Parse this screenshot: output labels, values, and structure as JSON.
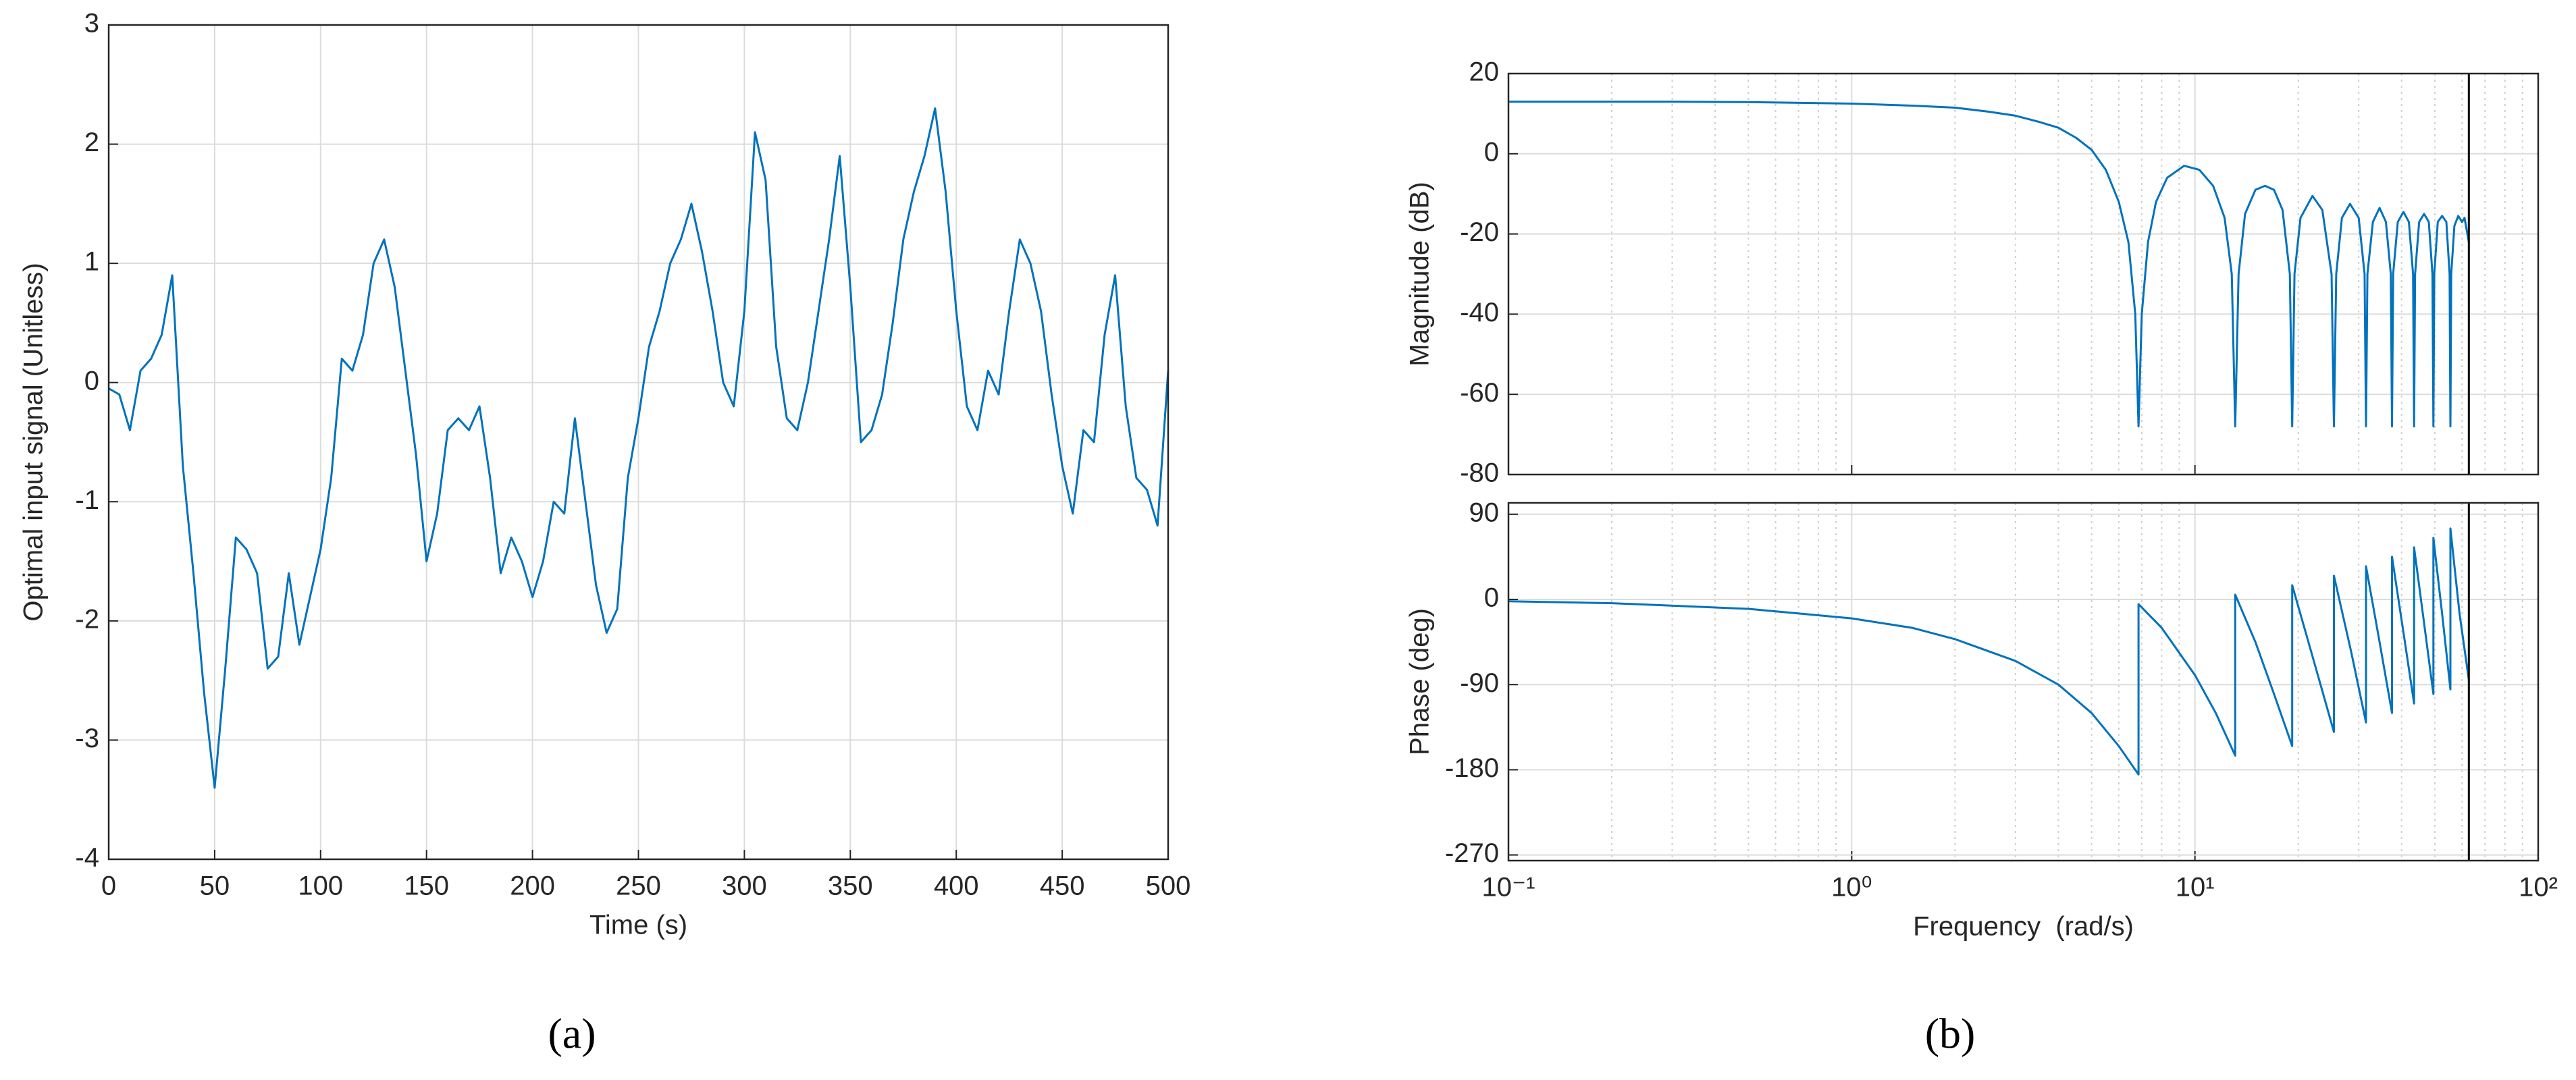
{
  "chart_data": [
    {
      "type": "line",
      "ylabel": "Optimal input signal (Unitless)",
      "xlabel": "Time (s)",
      "xlim": [
        0,
        500
      ],
      "xticks": [
        0,
        50,
        100,
        150,
        200,
        250,
        300,
        350,
        400,
        450,
        500
      ],
      "ylim": [
        -4,
        3
      ],
      "yticks": [
        -4,
        -3,
        -2,
        -1,
        0,
        1,
        2,
        3
      ],
      "grid": true,
      "show_xtick_labels": true,
      "series": [
        {
          "color": "#0072bd",
          "x": [
            0,
            5,
            10,
            15,
            20,
            25,
            30,
            35,
            40,
            45,
            50,
            55,
            60,
            65,
            70,
            75,
            80,
            85,
            90,
            95,
            100,
            105,
            110,
            115,
            120,
            125,
            130,
            135,
            140,
            145,
            150,
            155,
            160,
            165,
            170,
            175,
            180,
            185,
            190,
            195,
            200,
            205,
            210,
            215,
            220,
            225,
            230,
            235,
            240,
            245,
            250,
            255,
            260,
            265,
            270,
            275,
            280,
            285,
            290,
            295,
            300,
            305,
            310,
            315,
            320,
            325,
            330,
            335,
            340,
            345,
            350,
            355,
            360,
            365,
            370,
            375,
            380,
            385,
            390,
            395,
            400,
            405,
            410,
            415,
            420,
            425,
            430,
            435,
            440,
            445,
            450,
            455,
            460,
            465,
            470,
            475,
            480,
            485,
            490,
            495,
            500
          ],
          "values": [
            -0.05,
            -0.1,
            -0.4,
            0.1,
            0.2,
            0.4,
            0.9,
            -0.7,
            -1.6,
            -2.6,
            -3.4,
            -2.4,
            -1.3,
            -1.4,
            -1.6,
            -2.4,
            -2.3,
            -1.6,
            -2.2,
            -1.8,
            -1.4,
            -0.8,
            0.2,
            0.1,
            0.4,
            1.0,
            1.2,
            0.8,
            0.1,
            -0.6,
            -1.5,
            -1.1,
            -0.4,
            -0.3,
            -0.4,
            -0.2,
            -0.8,
            -1.6,
            -1.3,
            -1.5,
            -1.8,
            -1.5,
            -1.0,
            -1.1,
            -0.3,
            -1.0,
            -1.7,
            -2.1,
            -1.9,
            -0.8,
            -0.3,
            0.3,
            0.6,
            1.0,
            1.2,
            1.5,
            1.1,
            0.6,
            0.0,
            -0.2,
            0.6,
            2.1,
            1.7,
            0.3,
            -0.3,
            -0.4,
            0.0,
            0.6,
            1.2,
            1.9,
            0.8,
            -0.5,
            -0.4,
            -0.1,
            0.5,
            1.2,
            1.6,
            1.9,
            2.3,
            1.6,
            0.6,
            -0.2,
            -0.4,
            0.1,
            -0.1,
            0.6,
            1.2,
            1.0,
            0.6,
            -0.1,
            -0.7,
            -1.1,
            -0.4,
            -0.5,
            0.4,
            0.9,
            -0.2,
            -0.8,
            -0.9,
            -1.2,
            0.1
          ]
        }
      ]
    },
    {
      "type": "line",
      "ylabel": "Magnitude (dB)",
      "xscale": "log",
      "xlim": [
        0.1,
        100
      ],
      "xticks": [
        0.1,
        1,
        10,
        100
      ],
      "show_xtick_labels": false,
      "ylim": [
        -80,
        20
      ],
      "yticks": [
        -80,
        -60,
        -40,
        -20,
        0,
        20
      ],
      "grid": true,
      "vline": 62.8,
      "series": [
        {
          "color": "#0072bd",
          "x": [
            0.1,
            0.3,
            0.5,
            1,
            1.5,
            2,
            2.5,
            3,
            3.5,
            4,
            4.5,
            5,
            5.5,
            6,
            6.4,
            6.7,
            6.85,
            7,
            7.3,
            7.7,
            8.3,
            9.3,
            10.3,
            11.3,
            12.2,
            12.8,
            13.1,
            13.4,
            14,
            15,
            16,
            17,
            18,
            18.9,
            19.2,
            19.5,
            20.3,
            22,
            23.5,
            25,
            25.4,
            25.8,
            26.8,
            28.3,
            30,
            31.2,
            31.5,
            31.8,
            33,
            34.5,
            36,
            37.2,
            37.5,
            37.8,
            39,
            40.5,
            42,
            43.2,
            43.5,
            43.8,
            45,
            46.5,
            48,
            49.2,
            49.5,
            49.8,
            51,
            52.5,
            54,
            55.2,
            55.5,
            55.8,
            57,
            58.5,
            60,
            61,
            62.8
          ],
          "values": [
            13,
            13,
            12.9,
            12.5,
            12,
            11.5,
            10.5,
            9.5,
            8,
            6.5,
            4,
            1,
            -4,
            -12,
            -22,
            -40,
            -68,
            -40,
            -22,
            -12,
            -6,
            -3,
            -4,
            -8,
            -16,
            -30,
            -68,
            -30,
            -15,
            -9,
            -8,
            -9,
            -14,
            -30,
            -68,
            -30,
            -16,
            -10.5,
            -14,
            -30,
            -68,
            -30,
            -16,
            -12.5,
            -16,
            -30,
            -68,
            -30,
            -17,
            -13.5,
            -17,
            -30,
            -68,
            -30,
            -17,
            -14.5,
            -17,
            -30,
            -68,
            -30,
            -17,
            -15,
            -17,
            -30,
            -68,
            -30,
            -17,
            -15.5,
            -17,
            -30,
            -68,
            -30,
            -18,
            -15.5,
            -17,
            -16,
            -22
          ]
        }
      ]
    },
    {
      "type": "line",
      "ylabel": "Phase (deg)",
      "xlabel": "Frequency  (rad/s)",
      "xscale": "log",
      "xlim": [
        0.1,
        100
      ],
      "xticks": [
        {
          "value": 0.1,
          "label": "10⁻¹"
        },
        {
          "value": 1,
          "label": "10⁰"
        },
        {
          "value": 10,
          "label": "10¹"
        },
        {
          "value": 100,
          "label": "10²"
        }
      ],
      "show_xtick_labels": true,
      "ylim": [
        -276,
        102
      ],
      "yticks": [
        -270,
        -180,
        -90,
        0,
        90
      ],
      "grid": true,
      "vline": 62.8,
      "series": [
        {
          "color": "#0072bd",
          "x": [
            0.1,
            0.2,
            0.5,
            1,
            1.5,
            2,
            3,
            4,
            5,
            6,
            6.85,
            6.85,
            8,
            10,
            11.5,
            13.1,
            13.1,
            15,
            17,
            19.2,
            19.2,
            22,
            25.4,
            25.4,
            28.5,
            31.5,
            31.5,
            34.5,
            37.5,
            37.5,
            40.5,
            43.5,
            43.5,
            46.5,
            49.5,
            49.5,
            52.5,
            55.5,
            55.5,
            59,
            62.8
          ],
          "values": [
            -2,
            -4,
            -10,
            -20,
            -30,
            -42,
            -65,
            -90,
            -120,
            -155,
            -185,
            -5,
            -30,
            -80,
            -120,
            -165,
            5,
            -45,
            -100,
            -155,
            15,
            -60,
            -140,
            25,
            -55,
            -130,
            35,
            -45,
            -120,
            45,
            -35,
            -110,
            55,
            -25,
            -100,
            65,
            -15,
            -95,
            75,
            -15,
            -85
          ]
        }
      ]
    }
  ],
  "captions": [
    "(a)",
    "(b)"
  ]
}
